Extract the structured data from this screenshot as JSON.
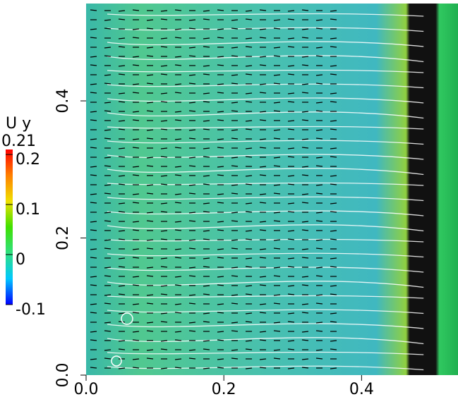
{
  "chart_data": {
    "type": "field",
    "colorbar_title": "U y",
    "clim": [
      -0.1,
      0.21
    ],
    "cticks": [
      0.2,
      0.1,
      0,
      -0.1
    ],
    "colormap": [
      "#0000ff",
      "#00c8ff",
      "#30e080",
      "#40e000",
      "#f0e000",
      "#ff8000",
      "#ff0000"
    ],
    "xlim": [
      0,
      0.54
    ],
    "ylim": [
      0,
      0.542
    ],
    "xticks": [
      {
        "value": 0,
        "label": "0.0"
      },
      0.2,
      0.4
    ],
    "yticks": [
      {
        "value": 0,
        "label": "0.0"
      },
      0.2,
      0.4
    ]
  }
}
